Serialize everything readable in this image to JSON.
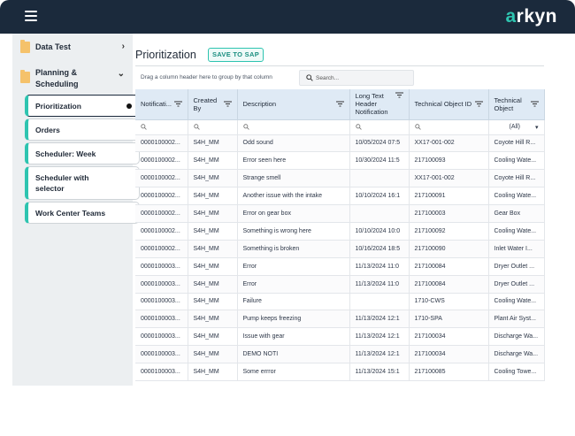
{
  "app": {
    "logo_accent": "a",
    "logo_rest": "rkyn",
    "accent_color": "#2ec4b0",
    "topbar_color": "#1b2a3c"
  },
  "sidebar": {
    "groups": [
      {
        "label": "Data Test",
        "chevron": "›"
      },
      {
        "label": "Planning & Scheduling",
        "chevron": "⌄"
      }
    ],
    "items": [
      {
        "label": "Prioritization",
        "active": true
      },
      {
        "label": "Orders"
      },
      {
        "label": "Scheduler: Week"
      },
      {
        "label": "Scheduler with selector"
      },
      {
        "label": "Work Center Teams"
      }
    ]
  },
  "main": {
    "title": "Prioritization",
    "save_label": "SAVE TO SAP",
    "group_hint": "Drag a column header here to group by that column",
    "search_placeholder": "Search...",
    "columns": [
      "Notificati...",
      "Created By",
      "Description",
      "Long Text Header Notification",
      "Technical Object ID",
      "Technical Object"
    ],
    "filter_all": "(All)",
    "rows": [
      [
        "0000100002...",
        "S4H_MM",
        "Odd sound",
        "10/05/2024 07:5",
        "XX17-001-002",
        "Coyote Hill R..."
      ],
      [
        "0000100002...",
        "S4H_MM",
        "Error seen here",
        "10/30/2024 11:5",
        "217100093",
        "Cooling Wate..."
      ],
      [
        "0000100002...",
        "S4H_MM",
        "Strange smell",
        "",
        "XX17-001-002",
        "Coyote Hill R..."
      ],
      [
        "0000100002...",
        "S4H_MM",
        "Another issue with the intake",
        "10/10/2024 16:1",
        "217100091",
        "Cooling Wate..."
      ],
      [
        "0000100002...",
        "S4H_MM",
        "Error on gear box",
        "",
        "217100003",
        "Gear Box"
      ],
      [
        "0000100002...",
        "S4H_MM",
        "Something is wrong here",
        "10/10/2024 10:0",
        "217100092",
        "Cooling Wate..."
      ],
      [
        "0000100002...",
        "S4H_MM",
        "Something is broken",
        "10/16/2024 18:5",
        "217100090",
        "Inlet Water I..."
      ],
      [
        "0000100003...",
        "S4H_MM",
        "Error",
        "11/13/2024 11:0",
        "217100084",
        "Dryer Outlet ..."
      ],
      [
        "0000100003...",
        "S4H_MM",
        "Error",
        "11/13/2024 11:0",
        "217100084",
        "Dryer Outlet ..."
      ],
      [
        "0000100003...",
        "S4H_MM",
        "Failure",
        "",
        "1710-CWS",
        "Cooling Wate..."
      ],
      [
        "0000100003...",
        "S4H_MM",
        "Pump keeps freezing",
        "11/13/2024 12:1",
        "1710-SPA",
        "Plant Air Syst..."
      ],
      [
        "0000100003...",
        "S4H_MM",
        "Issue with gear",
        "11/13/2024 12:1",
        "217100034",
        "Discharge Wa..."
      ],
      [
        "0000100003...",
        "S4H_MM",
        "DEMO NOTI",
        "11/13/2024 12:1",
        "217100034",
        "Discharge Wa..."
      ],
      [
        "0000100003...",
        "S4H_MM",
        "Some errror",
        "11/13/2024 15:1",
        "217100085",
        "Cooling Towe..."
      ]
    ]
  }
}
